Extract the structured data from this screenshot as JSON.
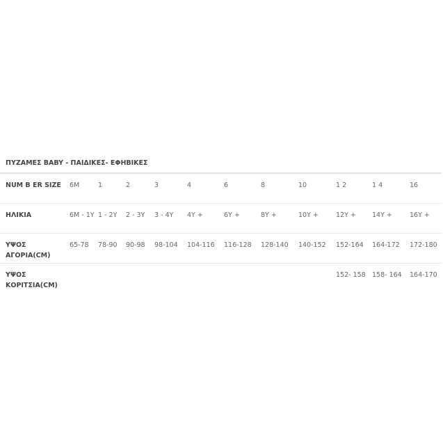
{
  "title": "ΠΥΖΑΜΕΣ BABY - ΠΑΙΔΙΚΕΣ- ΕΦΗΒΙΚΕΣ",
  "rows": [
    {
      "label": "NUM B ER SIZE",
      "cells": [
        "6M",
        "1",
        "2",
        "3",
        "4",
        "6",
        "8",
        "10",
        "1 2",
        "1 4",
        "16"
      ]
    },
    {
      "label": "ΗΛΙΚΙΑ",
      "cells": [
        "6M - 1Y",
        "1 - 2Y",
        "2 - 3Y",
        "3 - 4Y",
        "4Y +",
        "6Y +",
        "8Y +",
        "10Y +",
        "12Y +",
        "14Y +",
        "16Y +"
      ]
    },
    {
      "label": "ΥΨΟΣ ΑΓΟΡΙΑ(CM)",
      "cells": [
        "65-78",
        "78-90",
        "90-98",
        "98-104",
        "104-116",
        "116-128",
        "128-140",
        "140-152",
        "152-164",
        "164-172",
        "172-180"
      ]
    },
    {
      "label": "ΥΨΟΣ ΚΟΡΙΤΣΙΑ(CM)",
      "cells": [
        "",
        "",
        "",
        "",
        "",
        "",
        "",
        "",
        "152- 158",
        "158- 164",
        "164-170"
      ]
    }
  ]
}
